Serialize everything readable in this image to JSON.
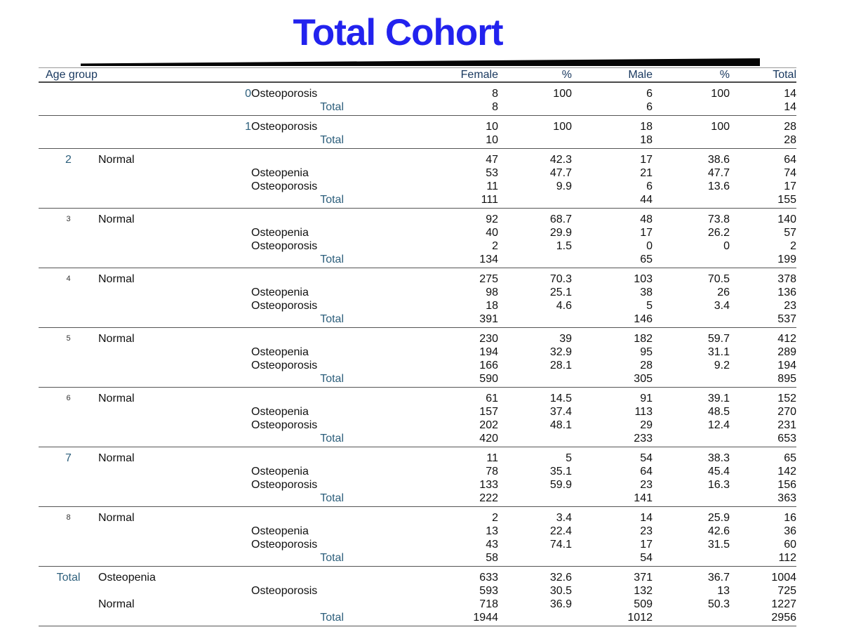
{
  "title": "Total Cohort",
  "colors": {
    "title": "#2222ee",
    "header_text": "#17375e",
    "accent_blue": "#2d5f7c",
    "body_text": "#101010",
    "rule": "#555555"
  },
  "table": {
    "header": {
      "age_group": "Age group",
      "female": "Female",
      "pct_female": "%",
      "male": "Male",
      "pct_male": "%",
      "total": "Total"
    },
    "groups": [
      {
        "rows": [
          {
            "mid": "0",
            "cat": "Osteoporosis",
            "f": "8",
            "fp": "100",
            "m": "6",
            "mp": "100",
            "t": "14"
          },
          {
            "cat": "Total",
            "catTotal": true,
            "f": "8",
            "m": "6",
            "t": "14"
          }
        ]
      },
      {
        "rows": [
          {
            "mid": "1",
            "cat": "Osteoporosis",
            "f": "10",
            "fp": "100",
            "m": "18",
            "mp": "100",
            "t": "28"
          },
          {
            "cat": "Total",
            "catTotal": true,
            "f": "10",
            "m": "18",
            "t": "28"
          }
        ]
      },
      {
        "rows": [
          {
            "age": "2",
            "ageCls": "blue",
            "group": "Normal",
            "f": "47",
            "fp": "42.3",
            "m": "17",
            "mp": "38.6",
            "t": "64"
          },
          {
            "cat": "Osteopenia",
            "f": "53",
            "fp": "47.7",
            "m": "21",
            "mp": "47.7",
            "t": "74"
          },
          {
            "cat": "Osteoporosis",
            "f": "11",
            "fp": "9.9",
            "m": "6",
            "mp": "13.6",
            "t": "17"
          },
          {
            "cat": "Total",
            "catTotal": true,
            "f": "111",
            "m": "44",
            "t": "155"
          }
        ]
      },
      {
        "rows": [
          {
            "age": "3",
            "ageCls": "small",
            "group": "Normal",
            "f": "92",
            "fp": "68.7",
            "m": "48",
            "mp": "73.8",
            "t": "140"
          },
          {
            "cat": "Osteopenia",
            "f": "40",
            "fp": "29.9",
            "m": "17",
            "mp": "26.2",
            "t": "57"
          },
          {
            "cat": "Osteoporosis",
            "f": "2",
            "fp": "1.5",
            "m": "0",
            "mp": "0",
            "t": "2"
          },
          {
            "cat": "Total",
            "catTotal": true,
            "f": "134",
            "m": "65",
            "t": "199"
          }
        ]
      },
      {
        "rows": [
          {
            "age": "4",
            "ageCls": "small",
            "group": "Normal",
            "f": "275",
            "fp": "70.3",
            "m": "103",
            "mp": "70.5",
            "t": "378"
          },
          {
            "cat": "Osteopenia",
            "f": "98",
            "fp": "25.1",
            "m": "38",
            "mp": "26",
            "t": "136"
          },
          {
            "cat": "Osteoporosis",
            "f": "18",
            "fp": "4.6",
            "m": "5",
            "mp": "3.4",
            "t": "23"
          },
          {
            "cat": "Total",
            "catTotal": true,
            "f": "391",
            "m": "146",
            "t": "537"
          }
        ]
      },
      {
        "rows": [
          {
            "age": "5",
            "ageCls": "small",
            "group": "Normal",
            "f": "230",
            "fp": "39",
            "m": "182",
            "mp": "59.7",
            "t": "412"
          },
          {
            "cat": "Osteopenia",
            "f": "194",
            "fp": "32.9",
            "m": "95",
            "mp": "31.1",
            "t": "289"
          },
          {
            "cat": "Osteoporosis",
            "f": "166",
            "fp": "28.1",
            "m": "28",
            "mp": "9.2",
            "t": "194"
          },
          {
            "cat": "Total",
            "catTotal": true,
            "f": "590",
            "m": "305",
            "t": "895"
          }
        ]
      },
      {
        "rows": [
          {
            "age": "6",
            "ageCls": "small",
            "group": "Normal",
            "f": "61",
            "fp": "14.5",
            "m": "91",
            "mp": "39.1",
            "t": "152"
          },
          {
            "cat": "Osteopenia",
            "f": "157",
            "fp": "37.4",
            "m": "113",
            "mp": "48.5",
            "t": "270"
          },
          {
            "cat": "Osteoporosis",
            "f": "202",
            "fp": "48.1",
            "m": "29",
            "mp": "12.4",
            "t": "231"
          },
          {
            "cat": "Total",
            "catTotal": true,
            "f": "420",
            "m": "233",
            "t": "653"
          }
        ]
      },
      {
        "rows": [
          {
            "age": "7",
            "ageCls": "blue",
            "group": "Normal",
            "f": "11",
            "fp": "5",
            "m": "54",
            "mp": "38.3",
            "t": "65"
          },
          {
            "cat": "Osteopenia",
            "f": "78",
            "fp": "35.1",
            "m": "64",
            "mp": "45.4",
            "t": "142"
          },
          {
            "cat": "Osteoporosis",
            "f": "133",
            "fp": "59.9",
            "m": "23",
            "mp": "16.3",
            "t": "156"
          },
          {
            "cat": "Total",
            "catTotal": true,
            "f": "222",
            "m": "141",
            "t": "363"
          }
        ]
      },
      {
        "rows": [
          {
            "age": "8",
            "ageCls": "small",
            "group": "Normal",
            "f": "2",
            "fp": "3.4",
            "m": "14",
            "mp": "25.9",
            "t": "16"
          },
          {
            "cat": "Osteopenia",
            "f": "13",
            "fp": "22.4",
            "m": "23",
            "mp": "42.6",
            "t": "36"
          },
          {
            "cat": "Osteoporosis",
            "f": "43",
            "fp": "74.1",
            "m": "17",
            "mp": "31.5",
            "t": "60"
          },
          {
            "cat": "Total",
            "catTotal": true,
            "f": "58",
            "m": "54",
            "t": "112"
          }
        ]
      },
      {
        "rows": [
          {
            "age": "Total",
            "ageCls": "blue",
            "group": "Osteopenia",
            "f": "633",
            "fp": "32.6",
            "m": "371",
            "mp": "36.7",
            "t": "1004"
          },
          {
            "cat": "Osteoporosis",
            "f": "593",
            "fp": "30.5",
            "m": "132",
            "mp": "13",
            "t": "725"
          },
          {
            "group": "Normal",
            "f": "718",
            "fp": "36.9",
            "m": "509",
            "mp": "50.3",
            "t": "1227"
          },
          {
            "cat": "Total",
            "catTotal": true,
            "f": "1944",
            "m": "1012",
            "t": "2956"
          }
        ]
      }
    ]
  }
}
